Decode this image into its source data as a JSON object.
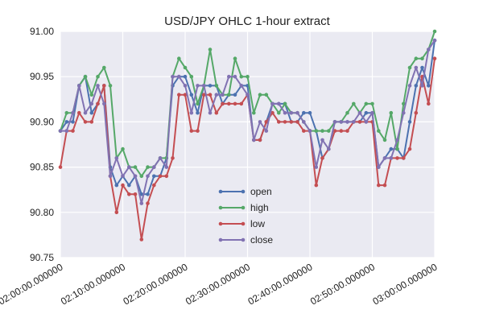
{
  "chart_data": {
    "type": "line",
    "title": "USD/JPY OHLC 1-hour extract",
    "xlabel": "",
    "ylabel": "",
    "ylim": [
      90.75,
      91.0
    ],
    "x_range_minutes": [
      0,
      60
    ],
    "grid": true,
    "legend_position": "lower-center",
    "y_ticks": [
      90.75,
      90.8,
      90.85,
      90.9,
      90.95,
      91.0
    ],
    "y_tick_labels": [
      "90.75",
      "90.80",
      "90.85",
      "90.90",
      "90.95",
      "91.00"
    ],
    "x_ticks_minutes": [
      0,
      10,
      20,
      30,
      40,
      50,
      60
    ],
    "x_tick_labels": [
      "02:00:00.000000",
      "02:10:00.000000",
      "02:20:00.000000",
      "02:30:00.000000",
      "02:40:00.000000",
      "02:50:00.000000",
      "03:00:00.000000"
    ],
    "x_minutes": [
      0,
      1,
      2,
      3,
      4,
      5,
      6,
      7,
      8,
      9,
      10,
      11,
      12,
      13,
      14,
      15,
      16,
      17,
      18,
      19,
      20,
      21,
      22,
      23,
      24,
      25,
      26,
      27,
      28,
      29,
      30,
      31,
      32,
      33,
      34,
      35,
      36,
      37,
      38,
      39,
      40,
      41,
      42,
      43,
      44,
      45,
      46,
      47,
      48,
      49,
      50,
      51,
      52,
      53,
      54,
      55,
      56,
      57,
      58,
      59,
      60
    ],
    "series": [
      {
        "name": "open",
        "color": "#4c72b0",
        "values": [
          90.89,
          90.9,
          90.9,
          90.94,
          90.95,
          90.91,
          90.92,
          90.94,
          90.85,
          90.83,
          90.84,
          90.83,
          90.84,
          90.82,
          90.82,
          90.84,
          90.84,
          90.86,
          90.94,
          90.95,
          90.95,
          90.93,
          90.91,
          90.94,
          90.94,
          90.94,
          90.92,
          90.93,
          90.93,
          90.94,
          90.94,
          90.88,
          90.88,
          90.9,
          90.92,
          90.92,
          90.92,
          90.9,
          90.9,
          90.91,
          90.91,
          90.89,
          90.86,
          90.87,
          90.9,
          90.9,
          90.9,
          90.9,
          90.9,
          90.91,
          90.91,
          90.85,
          90.86,
          90.87,
          90.87,
          90.86,
          90.9,
          90.94,
          90.96,
          90.94,
          90.99
        ]
      },
      {
        "name": "high",
        "color": "#55a868",
        "values": [
          90.89,
          90.91,
          90.91,
          90.94,
          90.95,
          90.93,
          90.95,
          90.96,
          90.94,
          90.86,
          90.87,
          90.85,
          90.85,
          90.84,
          90.85,
          90.85,
          90.86,
          90.86,
          90.95,
          90.97,
          90.96,
          90.95,
          90.92,
          90.94,
          90.98,
          90.94,
          90.93,
          90.93,
          90.97,
          90.95,
          90.95,
          90.91,
          90.93,
          90.93,
          90.92,
          90.91,
          90.92,
          90.91,
          90.91,
          90.9,
          90.89,
          90.89,
          90.89,
          90.89,
          90.9,
          90.9,
          90.91,
          90.92,
          90.91,
          90.92,
          90.92,
          90.89,
          90.88,
          90.91,
          90.87,
          90.92,
          90.96,
          90.97,
          90.97,
          90.98,
          91.0
        ]
      },
      {
        "name": "low",
        "color": "#c44e52",
        "values": [
          90.85,
          90.89,
          90.89,
          90.91,
          90.9,
          90.9,
          90.92,
          90.94,
          90.84,
          90.8,
          90.83,
          90.82,
          90.82,
          90.77,
          90.81,
          90.83,
          90.84,
          90.84,
          90.86,
          90.93,
          90.93,
          90.89,
          90.89,
          90.93,
          90.93,
          90.91,
          90.92,
          90.92,
          90.92,
          90.92,
          90.93,
          90.88,
          90.88,
          90.9,
          90.91,
          90.9,
          90.9,
          90.9,
          90.9,
          90.89,
          90.89,
          90.83,
          90.86,
          90.87,
          90.89,
          90.89,
          90.89,
          90.9,
          90.9,
          90.9,
          90.9,
          90.83,
          90.83,
          90.86,
          90.86,
          90.86,
          90.87,
          90.91,
          90.95,
          90.92,
          90.97
        ]
      },
      {
        "name": "close",
        "color": "#8172b2",
        "values": [
          90.89,
          90.89,
          90.91,
          90.94,
          90.91,
          90.92,
          90.94,
          90.92,
          90.84,
          90.86,
          90.84,
          90.85,
          90.84,
          90.81,
          90.84,
          90.85,
          90.86,
          90.85,
          90.95,
          90.95,
          90.94,
          90.91,
          90.94,
          90.94,
          90.91,
          90.93,
          90.93,
          90.95,
          90.95,
          90.94,
          90.93,
          90.88,
          90.9,
          90.89,
          90.92,
          90.92,
          90.91,
          90.91,
          90.91,
          90.9,
          90.89,
          90.85,
          90.88,
          90.87,
          90.9,
          90.9,
          90.9,
          90.9,
          90.91,
          90.9,
          90.91,
          90.85,
          90.86,
          90.86,
          90.88,
          90.91,
          90.94,
          90.96,
          90.94,
          90.98,
          90.99
        ]
      }
    ]
  }
}
